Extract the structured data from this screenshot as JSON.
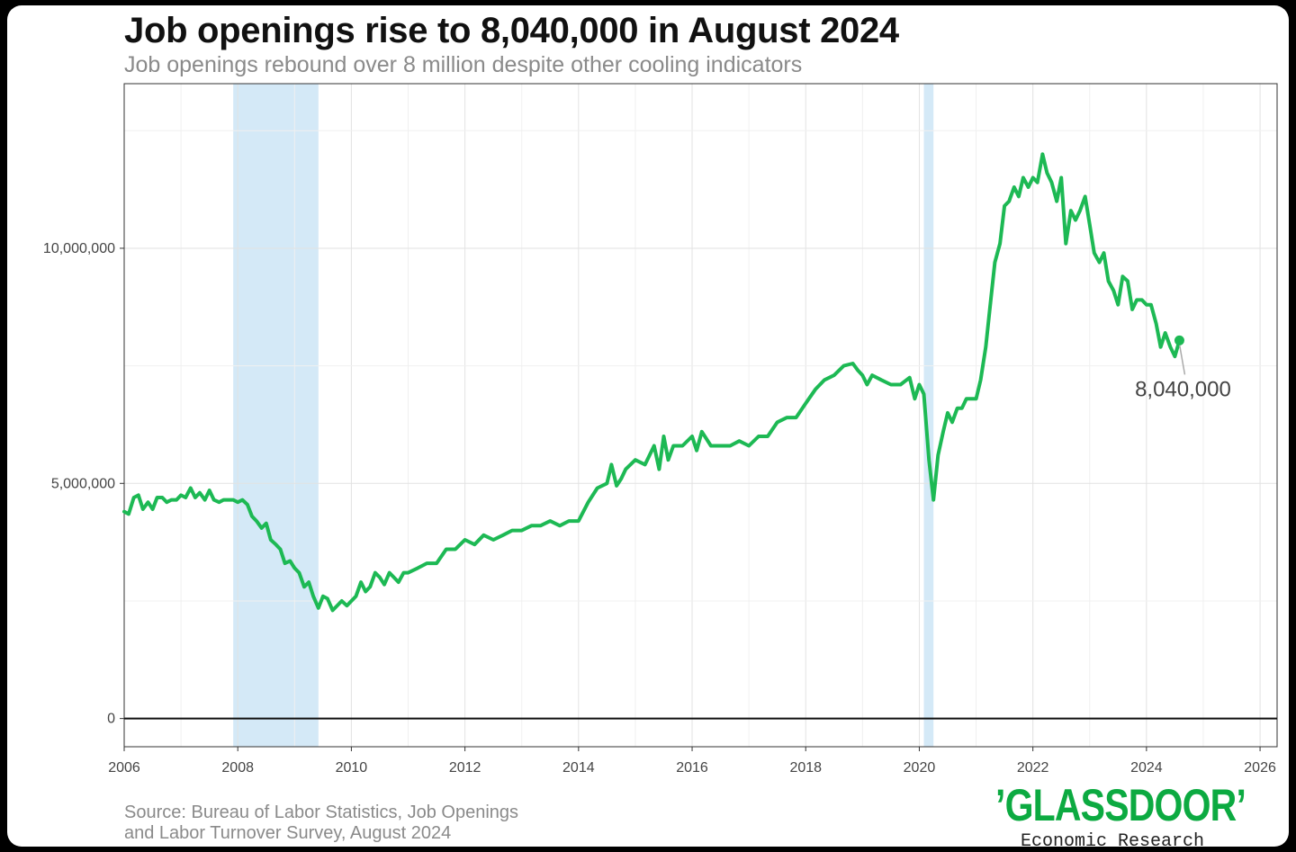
{
  "colors": {
    "line": "#1db954",
    "recession": "#d4e9f7",
    "grid": "#e5e5e5",
    "zero_line": "#111111",
    "logo": "#0caa41"
  },
  "header": {
    "title": "Job openings rise to 8,040,000 in August 2024",
    "subtitle": "Job openings rebound over 8 million despite other cooling indicators"
  },
  "footer": {
    "source_line1": "Source: Bureau of Labor Statistics, Job Openings",
    "source_line2": "and Labor Turnover Survey, August 2024",
    "logo_text": "GLASSDOOR",
    "logo_subtext": "Economic Research"
  },
  "chart_data": {
    "type": "line",
    "title": "Job openings rise to 8,040,000 in August 2024",
    "subtitle": "Job openings rebound over 8 million despite other cooling indicators",
    "xlabel": "",
    "ylabel": "",
    "xlim": [
      2006,
      2026.3
    ],
    "ylim": [
      -600000,
      13500000
    ],
    "x_ticks": [
      2006,
      2008,
      2010,
      2012,
      2014,
      2016,
      2018,
      2020,
      2022,
      2024,
      2026
    ],
    "x_tick_labels": [
      "2006",
      "2008",
      "2010",
      "2012",
      "2014",
      "2016",
      "2018",
      "2020",
      "2022",
      "2024",
      "2026"
    ],
    "y_ticks": [
      0,
      5000000,
      10000000
    ],
    "y_tick_labels": [
      "0",
      "5,000,000",
      "10,000,000"
    ],
    "grid": true,
    "recessions": [
      {
        "start": 2007.92,
        "end": 2009.42
      },
      {
        "start": 2020.08,
        "end": 2020.25
      }
    ],
    "annotation": {
      "x": 2024.58,
      "y": 8040000,
      "label": "8,040,000"
    },
    "series": [
      {
        "x": [
          2006.0,
          2006.08,
          2006.17,
          2006.25,
          2006.33,
          2006.42,
          2006.5,
          2006.58,
          2006.67,
          2006.75,
          2006.83,
          2006.92,
          2007.0,
          2007.08,
          2007.17,
          2007.25,
          2007.33,
          2007.42,
          2007.5,
          2007.58,
          2007.67,
          2007.75,
          2007.83,
          2007.92,
          2008.0,
          2008.08,
          2008.17,
          2008.25,
          2008.33,
          2008.42,
          2008.5,
          2008.58,
          2008.67,
          2008.75,
          2008.83,
          2008.92,
          2009.0,
          2009.08,
          2009.17,
          2009.25,
          2009.33,
          2009.42,
          2009.5,
          2009.58,
          2009.67,
          2009.75,
          2009.83,
          2009.92,
          2010.0,
          2010.08,
          2010.17,
          2010.25,
          2010.33,
          2010.42,
          2010.5,
          2010.58,
          2010.67,
          2010.75,
          2010.83,
          2010.92,
          2011.0,
          2011.17,
          2011.33,
          2011.5,
          2011.67,
          2011.83,
          2012.0,
          2012.17,
          2012.33,
          2012.5,
          2012.67,
          2012.83,
          2013.0,
          2013.17,
          2013.33,
          2013.5,
          2013.67,
          2013.83,
          2014.0,
          2014.17,
          2014.33,
          2014.5,
          2014.58,
          2014.67,
          2014.75,
          2014.83,
          2015.0,
          2015.17,
          2015.33,
          2015.42,
          2015.5,
          2015.58,
          2015.67,
          2015.83,
          2016.0,
          2016.08,
          2016.17,
          2016.33,
          2016.5,
          2016.67,
          2016.83,
          2017.0,
          2017.17,
          2017.33,
          2017.5,
          2017.67,
          2017.83,
          2018.0,
          2018.17,
          2018.33,
          2018.5,
          2018.67,
          2018.83,
          2018.92,
          2019.0,
          2019.08,
          2019.17,
          2019.33,
          2019.5,
          2019.67,
          2019.83,
          2019.92,
          2020.0,
          2020.08,
          2020.17,
          2020.25,
          2020.33,
          2020.42,
          2020.5,
          2020.58,
          2020.67,
          2020.75,
          2020.83,
          2020.92,
          2021.0,
          2021.08,
          2021.17,
          2021.25,
          2021.33,
          2021.42,
          2021.5,
          2021.58,
          2021.67,
          2021.75,
          2021.83,
          2021.92,
          2022.0,
          2022.08,
          2022.17,
          2022.25,
          2022.33,
          2022.42,
          2022.5,
          2022.58,
          2022.67,
          2022.75,
          2022.83,
          2022.92,
          2023.0,
          2023.08,
          2023.17,
          2023.25,
          2023.33,
          2023.42,
          2023.5,
          2023.58,
          2023.67,
          2023.75,
          2023.83,
          2023.92,
          2024.0,
          2024.08,
          2024.17,
          2024.25,
          2024.33,
          2024.42,
          2024.5,
          2024.58
        ],
        "values": [
          4400000,
          4350000,
          4700000,
          4750000,
          4450000,
          4600000,
          4450000,
          4700000,
          4700000,
          4600000,
          4650000,
          4650000,
          4750000,
          4700000,
          4900000,
          4700000,
          4800000,
          4650000,
          4850000,
          4650000,
          4600000,
          4650000,
          4650000,
          4650000,
          4600000,
          4650000,
          4550000,
          4300000,
          4200000,
          4050000,
          4150000,
          3800000,
          3700000,
          3600000,
          3300000,
          3350000,
          3200000,
          3100000,
          2800000,
          2900000,
          2600000,
          2350000,
          2600000,
          2550000,
          2300000,
          2400000,
          2500000,
          2400000,
          2500000,
          2600000,
          2900000,
          2700000,
          2800000,
          3100000,
          3000000,
          2850000,
          3100000,
          3000000,
          2900000,
          3100000,
          3100000,
          3200000,
          3300000,
          3300000,
          3600000,
          3600000,
          3800000,
          3700000,
          3900000,
          3800000,
          3900000,
          4000000,
          4000000,
          4100000,
          4100000,
          4200000,
          4100000,
          4200000,
          4200000,
          4600000,
          4900000,
          5000000,
          5400000,
          4950000,
          5100000,
          5300000,
          5500000,
          5400000,
          5800000,
          5300000,
          6000000,
          5500000,
          5800000,
          5800000,
          6000000,
          5700000,
          6100000,
          5800000,
          5800000,
          5800000,
          5900000,
          5800000,
          6000000,
          6000000,
          6300000,
          6400000,
          6400000,
          6700000,
          7000000,
          7200000,
          7300000,
          7500000,
          7550000,
          7400000,
          7300000,
          7100000,
          7300000,
          7200000,
          7100000,
          7100000,
          7250000,
          6800000,
          7100000,
          6900000,
          5500000,
          4650000,
          5600000,
          6100000,
          6500000,
          6300000,
          6600000,
          6600000,
          6800000,
          6800000,
          6800000,
          7200000,
          7900000,
          8800000,
          9700000,
          10100000,
          10900000,
          11000000,
          11300000,
          11100000,
          11500000,
          11300000,
          11500000,
          11400000,
          12000000,
          11600000,
          11400000,
          11000000,
          11500000,
          10100000,
          10800000,
          10600000,
          10800000,
          11100000,
          10500000,
          9900000,
          9700000,
          9900000,
          9300000,
          9100000,
          8800000,
          9400000,
          9300000,
          8700000,
          8900000,
          8900000,
          8800000,
          8800000,
          8400000,
          7900000,
          8200000,
          7900000,
          7700000,
          8040000
        ]
      }
    ]
  }
}
